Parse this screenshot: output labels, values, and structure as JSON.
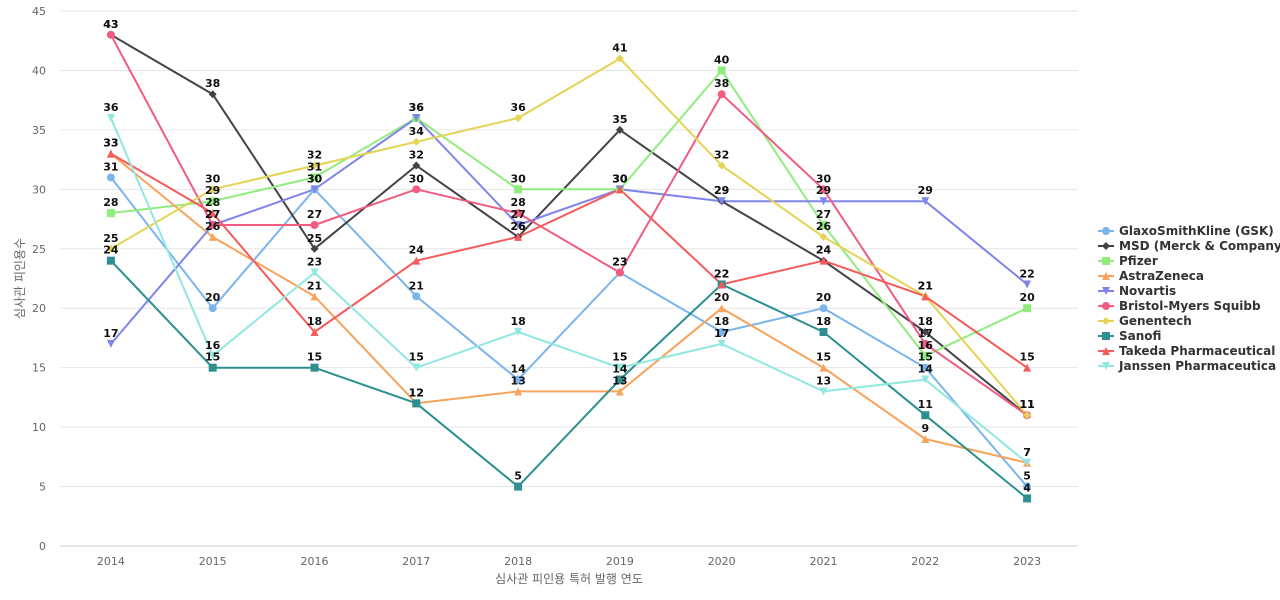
{
  "chart_data": {
    "type": "line",
    "title": "",
    "xlabel": "심사관 피인용 특허 발행 연도",
    "ylabel": "심사관 피인용수",
    "x": [
      "2014",
      "2015",
      "2016",
      "2017",
      "2018",
      "2019",
      "2020",
      "2021",
      "2022",
      "2023"
    ],
    "ylim": [
      0,
      45
    ],
    "yticks": [
      "0",
      "5",
      "10",
      "15",
      "20",
      "25",
      "30",
      "35",
      "40",
      "45"
    ],
    "grid": true,
    "legend_position": "right",
    "series": [
      {
        "name": "GlaxoSmithKline (GSK)",
        "color": "#7cb5ec",
        "marker": "circle",
        "values": [
          31,
          20,
          30,
          21,
          14,
          23,
          18,
          20,
          15,
          5
        ]
      },
      {
        "name": "MSD (Merck & Company)",
        "color": "#434348",
        "marker": "diamond",
        "values": [
          43,
          38,
          25,
          32,
          26,
          35,
          29,
          24,
          18,
          11
        ]
      },
      {
        "name": "Pfizer",
        "color": "#90ed7d",
        "marker": "square",
        "values": [
          28,
          29,
          31,
          36,
          30,
          30,
          40,
          27,
          16,
          20
        ]
      },
      {
        "name": "AstraZeneca",
        "color": "#f7a35c",
        "marker": "triangle",
        "values": [
          33,
          26,
          21,
          12,
          13,
          13,
          20,
          15,
          9,
          7
        ]
      },
      {
        "name": "Novartis",
        "color": "#8085e9",
        "marker": "triangle-down",
        "values": [
          17,
          27,
          30,
          36,
          27,
          30,
          29,
          29,
          29,
          22
        ]
      },
      {
        "name": "Bristol-Myers Squibb",
        "color": "#f15c80",
        "marker": "circle",
        "values": [
          43,
          27,
          27,
          30,
          28,
          23,
          38,
          30,
          17,
          11
        ]
      },
      {
        "name": "Genentech",
        "color": "#e4d354",
        "marker": "diamond",
        "values": [
          25,
          30,
          32,
          34,
          36,
          41,
          32,
          26,
          21,
          11
        ]
      },
      {
        "name": "Sanofi",
        "color": "#2b908f",
        "marker": "square",
        "values": [
          24,
          15,
          15,
          12,
          5,
          14,
          22,
          18,
          11,
          4
        ]
      },
      {
        "name": "Takeda Pharmaceutical",
        "color": "#f45b5b",
        "marker": "triangle",
        "values": [
          33,
          28,
          18,
          24,
          26,
          30,
          22,
          24,
          21,
          15
        ]
      },
      {
        "name": "Janssen Pharmaceutica",
        "color": "#91e8e1",
        "marker": "triangle-down",
        "values": [
          36,
          16,
          23,
          15,
          18,
          15,
          17,
          13,
          14,
          7
        ]
      }
    ]
  }
}
